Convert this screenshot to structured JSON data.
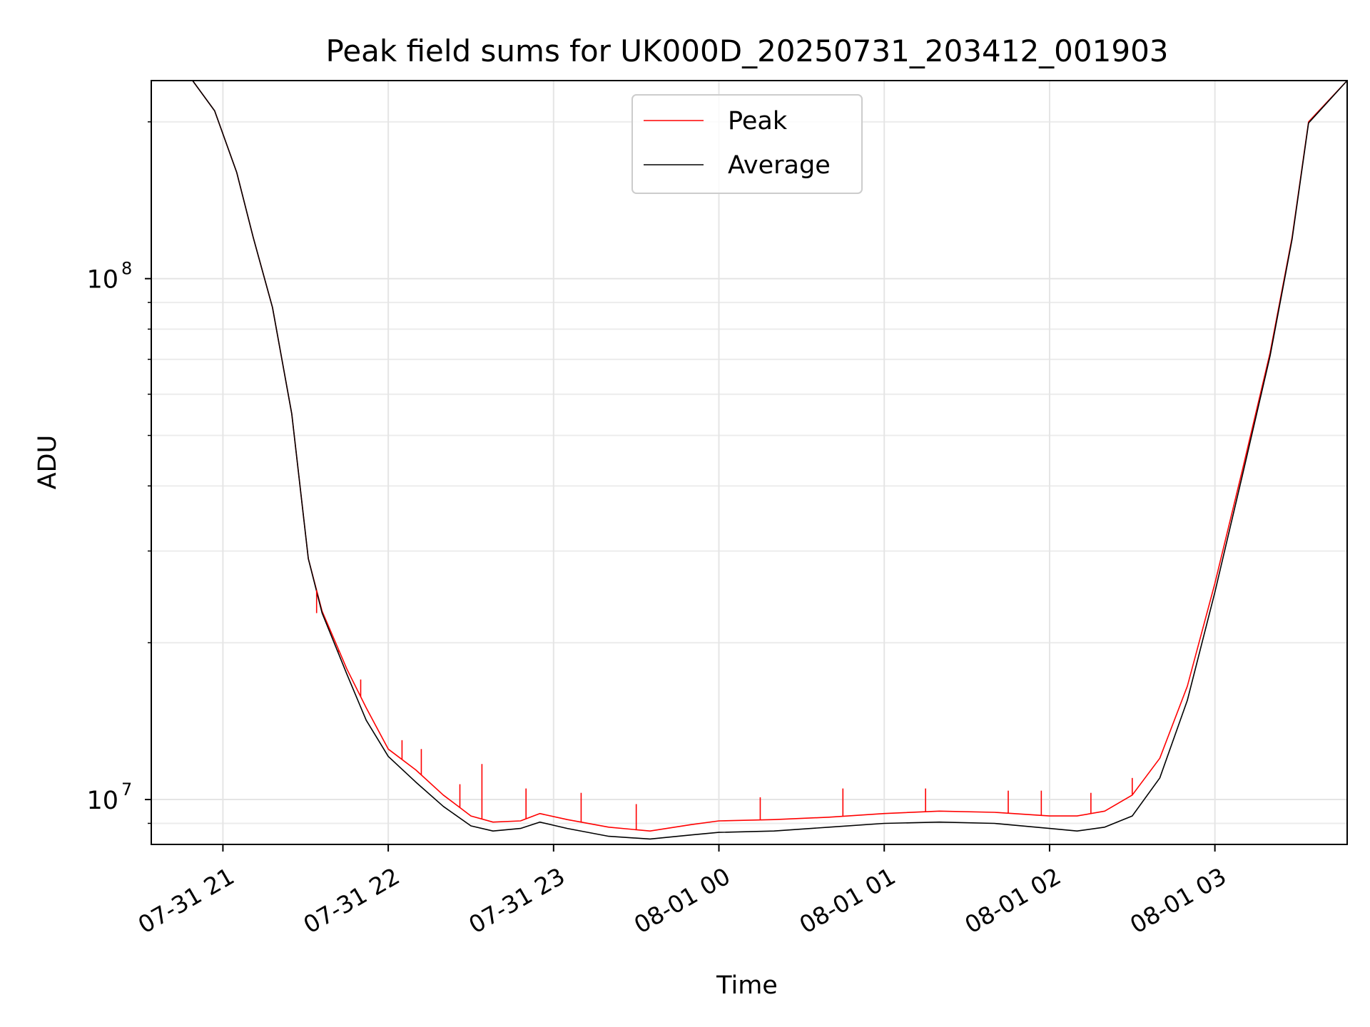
{
  "chart_data": {
    "type": "line",
    "title": "Peak field sums for UK000D_20250731_203412_001903",
    "xlabel": "Time",
    "ylabel": "ADU",
    "x_axis": {
      "type": "datetime",
      "xlim": [
        "2025-07-31T20:34",
        "2025-08-01T03:48"
      ],
      "ticks": [
        {
          "value": "2025-07-31T21:00",
          "label": "07-31 21"
        },
        {
          "value": "2025-07-31T22:00",
          "label": "07-31 22"
        },
        {
          "value": "2025-07-31T23:00",
          "label": "07-31 23"
        },
        {
          "value": "2025-08-01T00:00",
          "label": "08-01 00"
        },
        {
          "value": "2025-08-01T01:00",
          "label": "08-01 01"
        },
        {
          "value": "2025-08-01T02:00",
          "label": "08-01 02"
        },
        {
          "value": "2025-08-01T03:00",
          "label": "08-01 03"
        }
      ]
    },
    "y_axis": {
      "scale": "log",
      "ylim": [
        8200000,
        240000000
      ],
      "major_ticks": [
        {
          "value": 10000000,
          "label_base": "10",
          "label_exp": "7"
        },
        {
          "value": 100000000,
          "label_base": "10",
          "label_exp": "8"
        }
      ],
      "minor_ticks": [
        9000000,
        20000000,
        30000000,
        40000000,
        50000000,
        60000000,
        70000000,
        80000000,
        90000000,
        200000000
      ]
    },
    "grid": true,
    "legend": {
      "placement": "upper center"
    },
    "series": [
      {
        "name": "Peak",
        "color": "#ff0000",
        "x": [
          "2025-07-31T20:34",
          "2025-07-31T20:49",
          "2025-07-31T20:57",
          "2025-07-31T21:05",
          "2025-07-31T21:11",
          "2025-07-31T21:18",
          "2025-07-31T21:25",
          "2025-07-31T21:31",
          "2025-07-31T21:36",
          "2025-07-31T21:45",
          "2025-07-31T21:52",
          "2025-07-31T22:00",
          "2025-07-31T22:10",
          "2025-07-31T22:20",
          "2025-07-31T22:30",
          "2025-07-31T22:38",
          "2025-07-31T22:48",
          "2025-07-31T22:55",
          "2025-07-31T23:05",
          "2025-07-31T23:20",
          "2025-07-31T23:35",
          "2025-07-31T23:50",
          "2025-08-01T00:00",
          "2025-08-01T00:20",
          "2025-08-01T00:40",
          "2025-08-01T01:00",
          "2025-08-01T01:20",
          "2025-08-01T01:40",
          "2025-08-01T02:00",
          "2025-08-01T02:10",
          "2025-08-01T02:20",
          "2025-08-01T02:30",
          "2025-08-01T02:40",
          "2025-08-01T02:50",
          "2025-08-01T03:00",
          "2025-08-01T03:10",
          "2025-08-01T03:20",
          "2025-08-01T03:28",
          "2025-08-01T03:34",
          "2025-08-01T03:48"
        ],
        "y": [
          240000000,
          240000000,
          210000000,
          160000000,
          120000000,
          88000000,
          55000000,
          29000000,
          23000000,
          17800000,
          15000000,
          12500000,
          11400000,
          10200000,
          9300000,
          9050000,
          9100000,
          9400000,
          9150000,
          8850000,
          8700000,
          8950000,
          9100000,
          9150000,
          9250000,
          9400000,
          9500000,
          9450000,
          9300000,
          9300000,
          9500000,
          10200000,
          12000000,
          16500000,
          26000000,
          43000000,
          72000000,
          120000000,
          200000000,
          240000000
        ],
        "spike_tops": [
          {
            "x": "2025-07-31T21:34",
            "y": 22800000
          },
          {
            "x": "2025-07-31T21:42",
            "y": 19200000
          },
          {
            "x": "2025-07-31T21:50",
            "y": 17000000
          },
          {
            "x": "2025-07-31T22:05",
            "y": 13000000
          },
          {
            "x": "2025-07-31T22:12",
            "y": 12500000
          },
          {
            "x": "2025-07-31T22:26",
            "y": 10700000
          },
          {
            "x": "2025-07-31T22:34",
            "y": 11700000
          },
          {
            "x": "2025-07-31T22:50",
            "y": 10500000
          },
          {
            "x": "2025-07-31T23:10",
            "y": 10300000
          },
          {
            "x": "2025-07-31T23:30",
            "y": 9800000
          },
          {
            "x": "2025-08-01T00:15",
            "y": 10100000
          },
          {
            "x": "2025-08-01T00:45",
            "y": 10500000
          },
          {
            "x": "2025-08-01T01:15",
            "y": 10500000
          },
          {
            "x": "2025-08-01T01:45",
            "y": 10400000
          },
          {
            "x": "2025-08-01T01:57",
            "y": 10400000
          },
          {
            "x": "2025-08-01T02:15",
            "y": 10300000
          },
          {
            "x": "2025-08-01T02:30",
            "y": 11000000
          }
        ]
      },
      {
        "name": "Average",
        "color": "#000000",
        "x": [
          "2025-07-31T20:34",
          "2025-07-31T20:49",
          "2025-07-31T20:57",
          "2025-07-31T21:05",
          "2025-07-31T21:11",
          "2025-07-31T21:18",
          "2025-07-31T21:25",
          "2025-07-31T21:31",
          "2025-07-31T21:36",
          "2025-07-31T21:45",
          "2025-07-31T21:52",
          "2025-07-31T22:00",
          "2025-07-31T22:10",
          "2025-07-31T22:20",
          "2025-07-31T22:30",
          "2025-07-31T22:38",
          "2025-07-31T22:48",
          "2025-07-31T22:55",
          "2025-07-31T23:05",
          "2025-07-31T23:20",
          "2025-07-31T23:35",
          "2025-07-31T23:50",
          "2025-08-01T00:00",
          "2025-08-01T00:20",
          "2025-08-01T00:40",
          "2025-08-01T01:00",
          "2025-08-01T01:20",
          "2025-08-01T01:40",
          "2025-08-01T02:00",
          "2025-08-01T02:10",
          "2025-08-01T02:20",
          "2025-08-01T02:30",
          "2025-08-01T02:40",
          "2025-08-01T02:50",
          "2025-08-01T03:00",
          "2025-08-01T03:10",
          "2025-08-01T03:20",
          "2025-08-01T03:28",
          "2025-08-01T03:34",
          "2025-08-01T03:48"
        ],
        "y": [
          240000000,
          240000000,
          210000000,
          160000000,
          120000000,
          88000000,
          55000000,
          29000000,
          22800000,
          17400000,
          14200000,
          12100000,
          10800000,
          9700000,
          8900000,
          8700000,
          8800000,
          9050000,
          8800000,
          8500000,
          8400000,
          8550000,
          8650000,
          8700000,
          8850000,
          9000000,
          9050000,
          9000000,
          8800000,
          8700000,
          8850000,
          9300000,
          11000000,
          15500000,
          25000000,
          42000000,
          71000000,
          119000000,
          199000000,
          240000000
        ]
      }
    ]
  }
}
